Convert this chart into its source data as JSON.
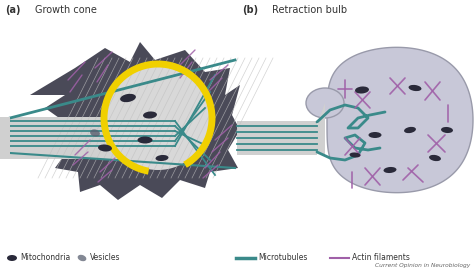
{
  "title_a": "Growth cone",
  "title_b": "Retraction bulb",
  "label_a": "(a)",
  "label_b": "(b)",
  "legend_items": [
    "Mitochondria",
    "Vesicles",
    "Microtubules",
    "Actin filaments"
  ],
  "footer": "Current Opinion in Neurobiology",
  "bg_color": "#ffffff",
  "axon_color": "#d0d0d0",
  "dark_cone_color": "#4a4a58",
  "microtubule_color": "#3a8a8a",
  "actin_color": "#a060a8",
  "mito_color": "#2a2a3a",
  "vesicle_color": "#5a6070",
  "yellow_color": "#f0d000",
  "bulb_color": "#c8c8d8",
  "bulb_edge_color": "#999aaa",
  "cone_fill_color": "#d8d8d8",
  "cone_hatch_color": "#bbbbbb"
}
